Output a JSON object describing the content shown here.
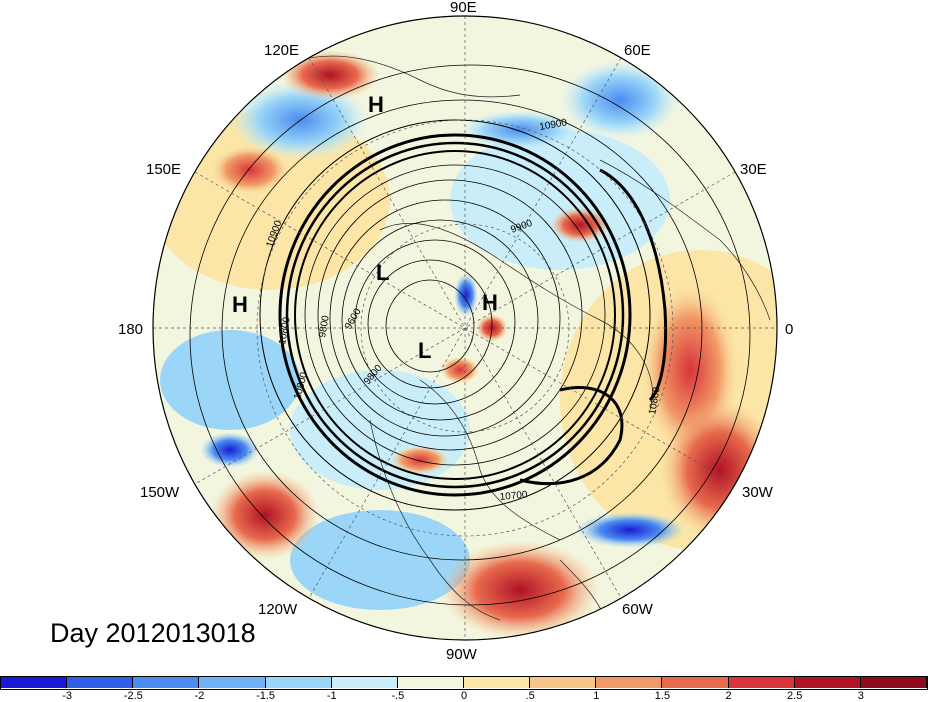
{
  "title": "Day 2012013018",
  "longitude_labels": [
    {
      "id": "lon-90e",
      "text": "90E"
    },
    {
      "id": "lon-120e",
      "text": "120E"
    },
    {
      "id": "lon-60e",
      "text": "60E"
    },
    {
      "id": "lon-150e",
      "text": "150E"
    },
    {
      "id": "lon-30e",
      "text": "30E"
    },
    {
      "id": "lon-180",
      "text": "180"
    },
    {
      "id": "lon-0",
      "text": "0"
    },
    {
      "id": "lon-150w",
      "text": "150W"
    },
    {
      "id": "lon-30w",
      "text": "30W"
    },
    {
      "id": "lon-120w",
      "text": "120W"
    },
    {
      "id": "lon-60w",
      "text": "60W"
    },
    {
      "id": "lon-90w",
      "text": "90W"
    }
  ],
  "pressure_centers": [
    {
      "type": "H",
      "text": "H",
      "region": "siberia"
    },
    {
      "type": "H",
      "text": "H",
      "region": "north-pacific"
    },
    {
      "type": "L",
      "text": "L",
      "region": "near-pole-pacific-side"
    },
    {
      "type": "H",
      "text": "H",
      "region": "pole"
    },
    {
      "type": "L",
      "text": "L",
      "region": "hudson-bay"
    }
  ],
  "contour_labels": [
    "10900",
    "9900",
    "10900",
    "9800",
    "9600",
    "10800",
    "9800",
    "10800",
    "10700",
    "10800"
  ],
  "colorbar": {
    "ticks": [
      "-3",
      "-2.5",
      "-2",
      "-1.5",
      "-1",
      "-.5",
      "0",
      ".5",
      "1",
      "1.5",
      "2",
      "2.5",
      "3"
    ],
    "colors": [
      "#1a1ad6",
      "#2f5fe8",
      "#4a8cf0",
      "#6fb2f5",
      "#9bd6f8",
      "#c9eefa",
      "#f3f6df",
      "#fbe6a7",
      "#f7c58a",
      "#f19a67",
      "#e86a4d",
      "#d8343a",
      "#b01226",
      "#8e0a1c"
    ]
  },
  "colors": {
    "anomaly_red": "#d8343a",
    "anomaly_blue": "#2f5fe8",
    "neutral": "#f3f6df"
  }
}
